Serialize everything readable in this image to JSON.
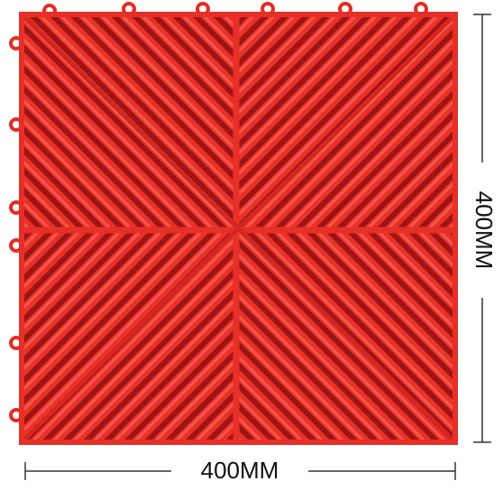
{
  "dimensions": {
    "width_label": "400MM",
    "height_label": "400MM"
  }
}
